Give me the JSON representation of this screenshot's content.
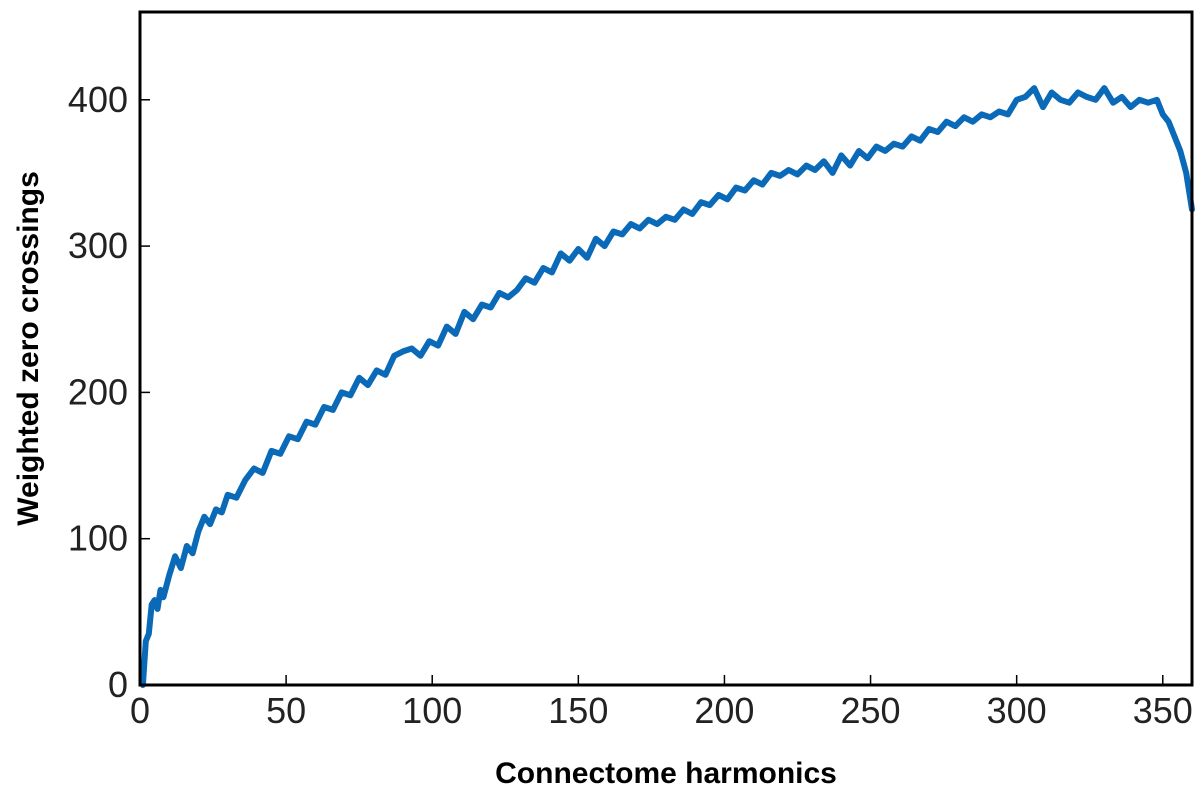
{
  "chart_data": {
    "type": "line",
    "title": "",
    "xlabel": "Connectome harmonics",
    "ylabel": "Weighted zero crossings",
    "xlim": [
      0,
      360
    ],
    "ylim": [
      0,
      460
    ],
    "xticks": [
      0,
      50,
      100,
      150,
      200,
      250,
      300,
      350
    ],
    "yticks": [
      0,
      100,
      200,
      300,
      400
    ],
    "grid": false,
    "legend": "none",
    "colors": {
      "line": "#0a6ab8",
      "axis": "#000000"
    },
    "series": [
      {
        "x": [
          1,
          2,
          3,
          4,
          5,
          6,
          7,
          8,
          10,
          12,
          14,
          16,
          18,
          20,
          22,
          24,
          26,
          28,
          30,
          33,
          36,
          39,
          42,
          45,
          48,
          51,
          54,
          57,
          60,
          63,
          66,
          69,
          72,
          75,
          78,
          81,
          84,
          87,
          90,
          93,
          96,
          99,
          102,
          105,
          108,
          111,
          114,
          117,
          120,
          123,
          126,
          129,
          132,
          135,
          138,
          141,
          144,
          147,
          150,
          153,
          156,
          159,
          162,
          165,
          168,
          171,
          174,
          177,
          180,
          183,
          186,
          189,
          192,
          195,
          198,
          201,
          204,
          207,
          210,
          213,
          216,
          219,
          222,
          225,
          228,
          231,
          234,
          237,
          240,
          243,
          246,
          249,
          252,
          255,
          258,
          261,
          264,
          267,
          270,
          273,
          276,
          279,
          282,
          285,
          288,
          291,
          294,
          297,
          300,
          303,
          306,
          309,
          312,
          315,
          318,
          321,
          324,
          327,
          330,
          333,
          336,
          339,
          342,
          345,
          348,
          350,
          352,
          354,
          356,
          358,
          360
        ],
        "y": [
          0,
          30,
          35,
          55,
          58,
          52,
          65,
          60,
          75,
          88,
          80,
          95,
          90,
          105,
          115,
          110,
          120,
          118,
          130,
          128,
          140,
          148,
          145,
          160,
          158,
          170,
          168,
          180,
          178,
          190,
          188,
          200,
          198,
          210,
          205,
          215,
          212,
          225,
          228,
          230,
          225,
          235,
          232,
          245,
          240,
          255,
          250,
          260,
          258,
          268,
          265,
          270,
          278,
          275,
          285,
          282,
          295,
          290,
          298,
          292,
          305,
          300,
          310,
          308,
          315,
          312,
          318,
          315,
          320,
          318,
          325,
          322,
          330,
          328,
          335,
          332,
          340,
          338,
          345,
          342,
          350,
          348,
          352,
          349,
          355,
          352,
          358,
          350,
          362,
          355,
          365,
          360,
          368,
          365,
          370,
          368,
          375,
          372,
          380,
          378,
          385,
          382,
          388,
          385,
          390,
          388,
          392,
          390,
          400,
          402,
          408,
          395,
          405,
          400,
          398,
          405,
          402,
          400,
          408,
          398,
          402,
          395,
          400,
          398,
          400,
          390,
          385,
          375,
          365,
          350,
          325
        ]
      }
    ]
  }
}
